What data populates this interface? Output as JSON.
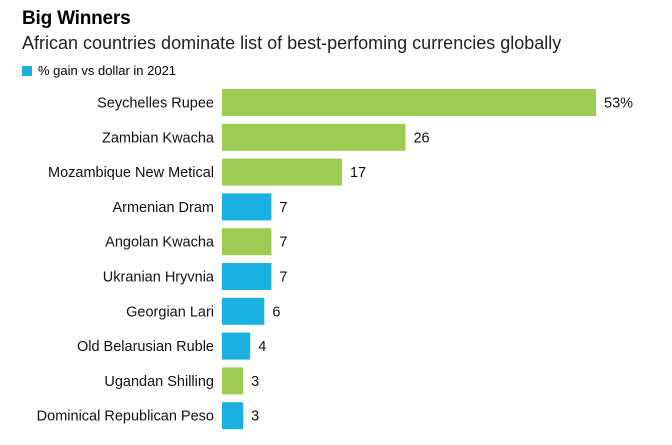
{
  "chart_data": {
    "type": "bar",
    "orientation": "horizontal",
    "title": "Big Winners",
    "subtitle": "African countries dominate list of best-perfoming currencies globally",
    "legend": {
      "label": "% gain vs dollar in 2021",
      "color": "#1ab0df",
      "placement": "top-left"
    },
    "categories": [
      "Seychelles Rupee",
      "Zambian Kwacha",
      "Mozambique New Metical",
      "Armenian Dram",
      "Angolan Kwacha",
      "Ukranian Hryvnia",
      "Georgian Lari",
      "Old Belarusian Ruble",
      "Ugandan Shilling",
      "Dominical Republican Peso"
    ],
    "values": [
      53,
      26,
      17,
      7,
      7,
      7,
      6,
      4,
      3,
      3
    ],
    "value_labels": [
      "53%",
      "26",
      "17",
      "7",
      "7",
      "7",
      "6",
      "4",
      "3",
      "3"
    ],
    "african": [
      true,
      true,
      true,
      false,
      true,
      false,
      false,
      false,
      true,
      false
    ],
    "colors": {
      "african": "#9ccc52",
      "other": "#1ab0df"
    },
    "xlim": [
      0,
      53
    ],
    "grid": false
  }
}
